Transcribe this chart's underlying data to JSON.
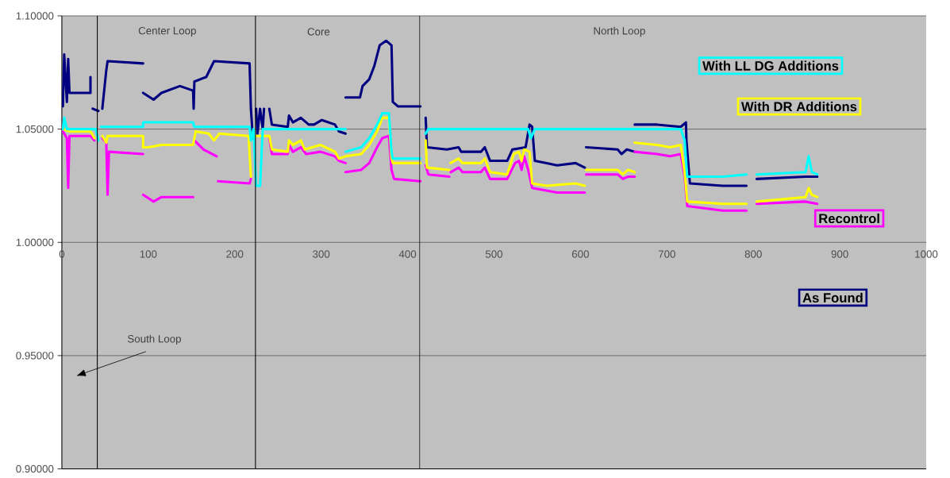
{
  "chart_data": {
    "type": "line",
    "xlim": [
      0,
      1000
    ],
    "xticks": [
      0,
      100,
      200,
      300,
      400,
      500,
      600,
      700,
      800,
      900,
      1000
    ],
    "ylim": [
      0.9,
      1.1
    ],
    "yticks": [
      {
        "value": 0.9,
        "label": "0.90000"
      },
      {
        "value": 0.95,
        "label": "0.95000"
      },
      {
        "value": 1.0,
        "label": "1.00000"
      },
      {
        "value": 1.05,
        "label": "1.05000"
      },
      {
        "value": 1.1,
        "label": "1.10000"
      }
    ],
    "grid": "y",
    "legend": "right",
    "marker": "none",
    "line_style": "solid",
    "ref_lines": [
      {
        "axis": "x",
        "value": 41,
        "color": "#000000"
      },
      {
        "axis": "x",
        "value": 224,
        "color": "#000000"
      },
      {
        "axis": "x",
        "value": 414,
        "color": "#000000"
      }
    ],
    "annotations": [
      "Center Loop",
      "Core",
      "North Loop",
      "South Loop"
    ],
    "series": [
      {
        "name": "As Found",
        "color": "#000080",
        "x": [
          1.2,
          2.7,
          5.8,
          7.3,
          8.8,
          10.3,
          33.1,
          33.1,
          null,
          35.6,
          42.3,
          null,
          46.8,
          51.4,
          52.9,
          94,
          null,
          94,
          106.1,
          115.2,
          136.6,
          151.8,
          152.5,
          153.3,
          167,
          176.1,
          217.2,
          218.7,
          221,
          null,
          224.7,
          226.3,
          229.3,
          232.4,
          233.9,
          null,
          240,
          243,
          261.3,
          262.8,
          267.3,
          276.5,
          285.6,
          291.7,
          300.8,
          316,
          320.5,
          328.2,
          null,
          328.2,
          344.9,
          347.9,
          355.6,
          361.6,
          367.7,
          375.3,
          381.4,
          382.9,
          389,
          414.9,
          null,
          420.9,
          422.4,
          445.3,
          459,
          462,
          484.8,
          489.3,
          495.4,
          515.2,
          521.2,
          536.5,
          541.1,
          544.1,
          547.2,
          560.9,
          573,
          594.3,
          605,
          null,
          606.5,
          643,
          647.5,
          653.6,
          662.7,
          null,
          662.7,
          688.6,
          716,
          722,
          722.6,
          726.6,
          764.6,
          792,
          null,
          803.8,
          860.4,
          874
        ],
        "values": [
          1.06,
          1.083,
          1.062,
          1.081,
          1.066,
          1.066,
          1.066,
          1.073,
          null,
          1.059,
          1.058,
          null,
          1.059,
          1.076,
          1.08,
          1.079,
          null,
          1.066,
          1.063,
          1.066,
          1.069,
          1.067,
          1.059,
          1.071,
          1.073,
          1.08,
          1.079,
          1.059,
          1.046,
          null,
          1.059,
          1.048,
          1.059,
          1.05,
          1.059,
          null,
          1.059,
          1.052,
          1.051,
          1.056,
          1.053,
          1.055,
          1.052,
          1.052,
          1.054,
          1.052,
          1.049,
          1.048,
          null,
          1.064,
          1.064,
          1.069,
          1.072,
          1.078,
          1.087,
          1.089,
          1.087,
          1.062,
          1.06,
          1.06,
          null,
          1.055,
          1.042,
          1.041,
          1.042,
          1.04,
          1.04,
          1.042,
          1.036,
          1.036,
          1.041,
          1.042,
          1.052,
          1.051,
          1.036,
          1.035,
          1.034,
          1.035,
          1.033,
          null,
          1.042,
          1.041,
          1.039,
          1.041,
          1.04,
          null,
          1.052,
          1.052,
          1.051,
          1.053,
          1.045,
          1.026,
          1.025,
          1.025,
          null,
          1.028,
          1.029,
          1.029
        ]
      },
      {
        "name": "Recontrol",
        "color": "#ff00ff",
        "x": [
          1.2,
          5.8,
          7.3,
          8.8,
          33.1,
          37.7,
          null,
          46.8,
          51.4,
          52.9,
          54.5,
          94,
          null,
          94,
          106.1,
          115.2,
          151.8,
          null,
          153.3,
          164,
          179.1,
          null,
          180.7,
          217.2,
          218.7,
          null,
          240,
          243,
          261.3,
          262.8,
          267.3,
          276.5,
          282.6,
          299.3,
          316,
          320.5,
          328.2,
          null,
          328.2,
          346.4,
          355.6,
          364.7,
          370.7,
          378.4,
          381.4,
          384.4,
          414.9,
          null,
          420.9,
          424,
          448.3,
          null,
          449.8,
          459,
          463.5,
          484.8,
          489.3,
          495.4,
          515.2,
          524.3,
          528.9,
          531.9,
          534.9,
          539.5,
          544.1,
          573,
          594.3,
          605,
          null,
          606.5,
          643,
          649,
          655.1,
          662.7,
          null,
          662.7,
          688.6,
          703.8,
          716,
          720.5,
          723.5,
          764.6,
          792,
          null,
          803.8,
          860.4,
          874
        ],
        "values": [
          1.049,
          1.046,
          1.024,
          1.047,
          1.047,
          1.045,
          null,
          1.046,
          1.044,
          1.021,
          1.04,
          1.039,
          null,
          1.021,
          1.018,
          1.02,
          1.02,
          null,
          1.045,
          1.041,
          1.038,
          null,
          1.027,
          1.026,
          1.028,
          null,
          1.046,
          1.039,
          1.039,
          1.043,
          1.04,
          1.042,
          1.039,
          1.04,
          1.038,
          1.036,
          1.035,
          null,
          1.031,
          1.032,
          1.035,
          1.042,
          1.046,
          1.047,
          1.032,
          1.028,
          1.027,
          null,
          1.034,
          1.03,
          1.029,
          null,
          1.031,
          1.033,
          1.031,
          1.031,
          1.033,
          1.028,
          1.028,
          1.035,
          1.036,
          1.032,
          1.038,
          1.032,
          1.024,
          1.022,
          1.022,
          1.022,
          null,
          1.03,
          1.03,
          1.028,
          1.029,
          1.029,
          null,
          1.04,
          1.039,
          1.038,
          1.039,
          1.029,
          1.016,
          1.014,
          1.014,
          null,
          1.017,
          1.018,
          1.017
        ]
      },
      {
        "name": "With DR Additions",
        "color": "#ffff00",
        "x": [
          1.2,
          8.8,
          33.1,
          37.7,
          null,
          46.8,
          51.4,
          52.9,
          94,
          94,
          100.1,
          115.2,
          151.8,
          154.8,
          170,
          176.1,
          182.2,
          216,
          218.7,
          null,
          224.7,
          240,
          243,
          261.3,
          262.8,
          267.3,
          276.5,
          281,
          299.3,
          316,
          320.5,
          328.2,
          346.4,
          355.6,
          364.7,
          370.7,
          378.4,
          381.4,
          382.9,
          414.9,
          null,
          420.9,
          422.4,
          448.3,
          null,
          449.8,
          459,
          463.5,
          484.8,
          489.3,
          495.4,
          515.2,
          522.8,
          528.9,
          531.9,
          534.9,
          541.1,
          544.1,
          560.9,
          594.3,
          605,
          null,
          606.5,
          643,
          649,
          655.1,
          662.7,
          null,
          662.7,
          688.6,
          703.8,
          716,
          720.5,
          723.5,
          764.6,
          792,
          null,
          803.8,
          860.4,
          864,
          867.7,
          874
        ],
        "values": [
          1.05,
          1.049,
          1.049,
          1.046,
          null,
          1.047,
          1.044,
          1.047,
          1.047,
          1.042,
          1.042,
          1.043,
          1.043,
          1.049,
          1.048,
          1.045,
          1.048,
          1.047,
          1.029,
          null,
          1.047,
          1.047,
          1.041,
          1.04,
          1.045,
          1.043,
          1.045,
          1.041,
          1.043,
          1.04,
          1.037,
          1.038,
          1.039,
          1.043,
          1.049,
          1.055,
          1.055,
          1.037,
          1.035,
          1.035,
          null,
          1.045,
          1.033,
          1.032,
          null,
          1.035,
          1.037,
          1.035,
          1.035,
          1.037,
          1.031,
          1.03,
          1.039,
          1.04,
          1.036,
          1.041,
          1.04,
          1.026,
          1.025,
          1.026,
          1.025,
          null,
          1.032,
          1.032,
          1.03,
          1.032,
          1.031,
          null,
          1.044,
          1.043,
          1.042,
          1.043,
          1.031,
          1.018,
          1.017,
          1.017,
          null,
          1.018,
          1.02,
          1.024,
          1.021,
          1.02
        ]
      },
      {
        "name": "With LL DG Additions",
        "color": "#00ffff",
        "x": [
          1.2,
          2.7,
          5.8,
          8.8,
          39.2,
          42.3,
          null,
          45.3,
          46.8,
          94,
          94,
          145.7,
          151.8,
          153.3,
          217.2,
          218.7,
          221.7,
          224.7,
          229.3,
          232.4,
          316,
          328.2,
          null,
          328.2,
          346.4,
          355.6,
          364.7,
          370.7,
          378.4,
          381.4,
          382.9,
          414.9,
          null,
          420.9,
          424,
          539.5,
          542.6,
          547.2,
          716,
          720.5,
          723.5,
          764.6,
          792,
          null,
          803.8,
          860.4,
          864,
          867.7,
          874
        ],
        "values": [
          1.05,
          1.055,
          1.05,
          1.05,
          1.05,
          1.045,
          null,
          1.051,
          1.051,
          1.051,
          1.053,
          1.053,
          1.053,
          1.051,
          1.051,
          1.045,
          1.05,
          1.025,
          1.025,
          1.05,
          1.05,
          1.05,
          null,
          1.04,
          1.042,
          1.046,
          1.052,
          1.057,
          1.057,
          1.04,
          1.037,
          1.037,
          null,
          1.048,
          1.05,
          1.05,
          1.046,
          1.05,
          1.05,
          1.045,
          1.029,
          1.029,
          1.03,
          null,
          1.03,
          1.031,
          1.038,
          1.031,
          1.03
        ]
      }
    ]
  }
}
